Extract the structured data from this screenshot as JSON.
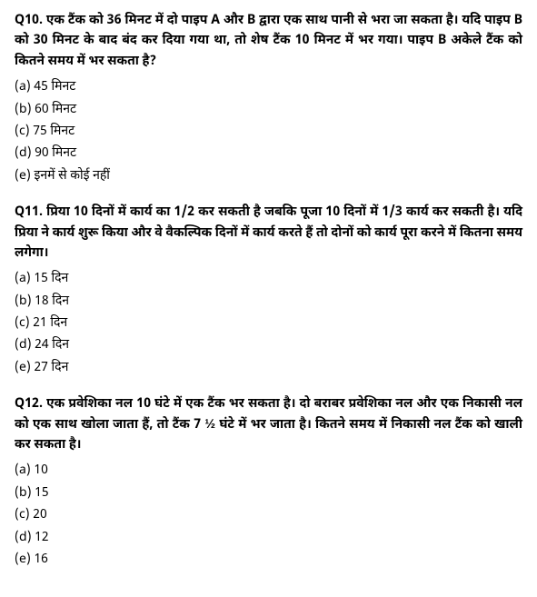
{
  "questions": [
    {
      "number": "Q10.",
      "text": "एक टैंक को 36 मिनट में दो पाइप A और B द्वारा एक साथ पानी से भरा जा सकता है। यदि पाइप B को 30 मिनट के बाद बंद कर दिया गया था, तो शेष टैंक 10 मिनट में भर गया। पाइप B अकेले टैंक को कितने समय में भर सकता है?",
      "options": [
        "(a) 45 मिनट",
        "(b) 60 मिनट",
        "(c) 75 मिनट",
        "(d) 90 मिनट",
        "(e) इनमें से कोई नहीं"
      ]
    },
    {
      "number": "Q11.",
      "text": "प्रिया 10 दिनों में कार्य का 1/2 कर सकती है जबकि पूजा 10 दिनों में 1/3 कार्य कर सकती है। यदि प्रिया ने कार्य शुरू किया और वे वैकल्पिक दिनों में कार्य करते हैं तो दोनों को कार्य पूरा करने में कितना समय लगेगा।",
      "options": [
        "(a) 15 दिन",
        "(b) 18 दिन",
        "(c) 21 दिन",
        "(d) 24 दिन",
        "(e) 27 दिन"
      ]
    },
    {
      "number": "Q12.",
      "text": "एक प्रवेशिका नल 10 घंटे में एक टैंक भर सकता है। दो बराबर प्रवेशिका नल और एक निकासी नल  को एक साथ खोला जाता हैं, तो टैंक 7 ½ घंटे में भर जाता है। कितने समय में निकासी नल टैंक को खाली कर सकता है।",
      "options": [
        "(a) 10",
        "(b) 15",
        "(c) 20",
        "(d) 12",
        "(e) 16"
      ]
    }
  ]
}
